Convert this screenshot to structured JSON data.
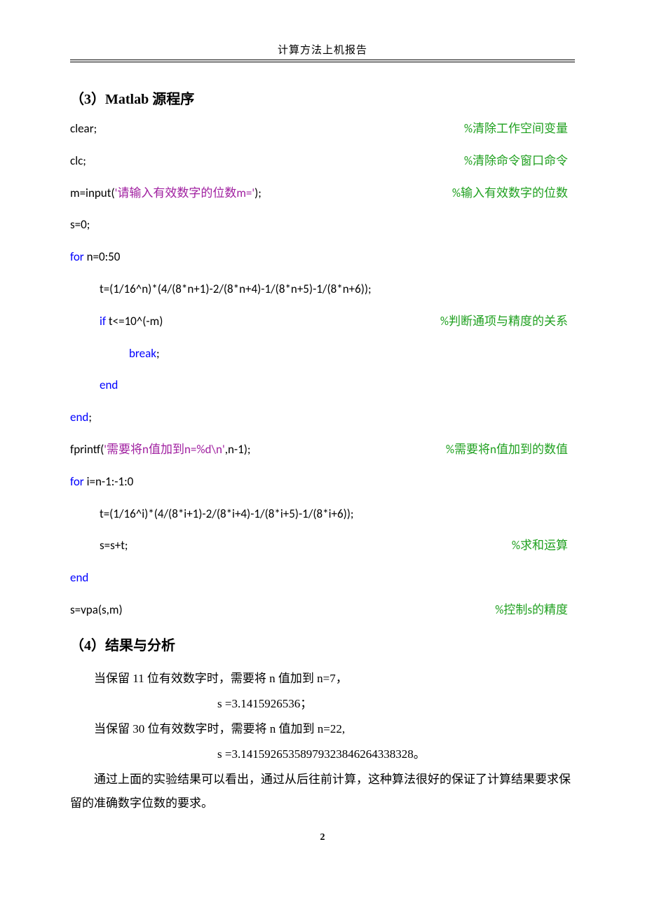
{
  "header": {
    "title": "计算方法上机报告"
  },
  "section3": {
    "heading": "（3）Matlab 源程序"
  },
  "code": {
    "l1": {
      "t": "clear;",
      "c": "%清除工作空间变量"
    },
    "l2": {
      "t": "clc;",
      "c": "%清除命令窗口命令"
    },
    "l3": {
      "a": "m=input(",
      "b": "'请输入有效数字的位数m='",
      "d": ");",
      "c": "%输入有效数字的位数"
    },
    "l4": {
      "t": "s=0;"
    },
    "l5": {
      "a": "for",
      "b": " n=0:50"
    },
    "l6": {
      "t": "t=(1/16^n)*(4/(8*n+1)-2/(8*n+4)-1/(8*n+5)-1/(8*n+6));"
    },
    "l7": {
      "a": "if",
      "b": " t<=10^(-m)",
      "c": "%判断通项与精度的关系"
    },
    "l8": {
      "a": "break",
      "b": ";"
    },
    "l9": {
      "a": "end"
    },
    "l10": {
      "a": "end",
      "b": ";"
    },
    "l11": {
      "a": "fprintf(",
      "b": "'需要将n值加到n=%d\\n'",
      "d": ",n-1);",
      "c": "%需要将n值加到的数值"
    },
    "l12": {
      "a": "for",
      "b": " i=n-1:-1:0"
    },
    "l13": {
      "t": "t=(1/16^i)*(4/(8*i+1)-2/(8*i+4)-1/(8*i+5)-1/(8*i+6));"
    },
    "l14": {
      "t": "s=s+t;",
      "c": "%求和运算"
    },
    "l15": {
      "a": "end"
    },
    "l16": {
      "t": "s=vpa(s,m)",
      "c": "%控制s的精度"
    }
  },
  "section4": {
    "heading": "（4）结果与分析",
    "p1": "当保留 11 位有效数字时，需要将 n 值加到 n=7，",
    "p2": "s =3.1415926536；",
    "p3": "当保留 30 位有效数字时，需要将 n 值加到 n=22,",
    "p4": "s =3.14159265358979323846264338328。",
    "p5": "通过上面的实验结果可以看出，通过从后往前计算，这种算法很好的保证了计算结果要求保留的准确数字位数的要求。"
  },
  "pagenum": "2",
  "colors": {
    "keyword": "#0000ff",
    "string": "#a020a0",
    "comment": "#1fa01f",
    "text": "#000000",
    "background": "#ffffff"
  }
}
